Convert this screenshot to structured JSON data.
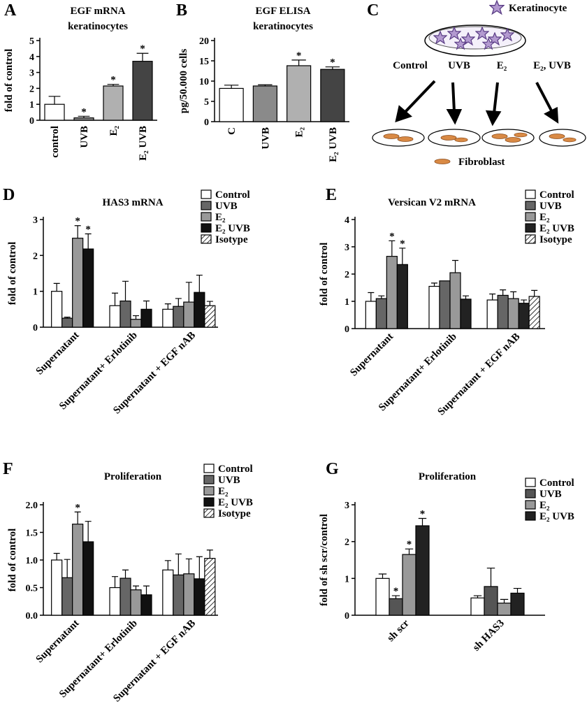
{
  "chart_data": [
    {
      "type": "bar",
      "panel": "A",
      "title": "EGF mRNA",
      "subtitle": "keratinocytes",
      "ylabel": "fold of control",
      "categories": [
        "control",
        "UVB",
        "E₂",
        "E₂ UVB"
      ],
      "values": [
        1.0,
        0.15,
        2.15,
        3.7
      ],
      "errors": [
        0.5,
        0.1,
        0.1,
        0.5
      ],
      "colors": [
        "#ffffff",
        "#8a8a8a",
        "#b0b0b0",
        "#444444"
      ],
      "markers": [
        null,
        "*",
        "*",
        "*"
      ],
      "ylim": [
        0,
        5
      ],
      "yticks": [
        0,
        1,
        2,
        3,
        4,
        5
      ]
    },
    {
      "type": "bar",
      "panel": "B",
      "title": "EGF ELISA",
      "subtitle": "keratinocytes",
      "ylabel": "pg/50.000 cells",
      "categories": [
        "C",
        "UVB",
        "E₂",
        "E₂ UVB"
      ],
      "values": [
        8.2,
        8.8,
        13.8,
        12.9
      ],
      "errors": [
        0.8,
        0.3,
        1.4,
        0.6
      ],
      "colors": [
        "#ffffff",
        "#8a8a8a",
        "#b0b0b0",
        "#444444"
      ],
      "markers": [
        null,
        null,
        "*",
        "*"
      ],
      "ylim": [
        0,
        20
      ],
      "yticks": [
        0,
        5,
        10,
        15,
        20
      ]
    },
    {
      "type": "grouped_bar",
      "panel": "D",
      "title": "HAS3 mRNA",
      "ylabel": "fold of control",
      "categories": [
        "Supernatant",
        "Supernatant+ Erlotinib",
        "Supernatant + EGF nAB"
      ],
      "series": [
        {
          "name": "Control",
          "color": "#ffffff",
          "values": [
            1.0,
            0.6,
            0.5
          ],
          "errors": [
            0.22,
            0.35,
            0.15
          ],
          "markers": [
            null,
            null,
            null
          ]
        },
        {
          "name": "UVB",
          "color": "#666666",
          "values": [
            0.25,
            0.73,
            0.58
          ],
          "errors": [
            0.03,
            0.55,
            0.22
          ],
          "markers": [
            null,
            null,
            null
          ]
        },
        {
          "name": "E₂",
          "color": "#999999",
          "values": [
            2.48,
            0.22,
            0.7
          ],
          "errors": [
            0.35,
            0.1,
            0.55
          ],
          "markers": [
            "*",
            null,
            null
          ]
        },
        {
          "name": "E₂ UVB",
          "color": "#111111",
          "values": [
            2.18,
            0.5,
            0.97
          ],
          "errors": [
            0.42,
            0.23,
            0.48
          ],
          "markers": [
            "*",
            null,
            null
          ]
        },
        {
          "name": "Isotype",
          "color": "#ffffff",
          "pattern": "hatch",
          "values": [
            null,
            null,
            0.6
          ],
          "errors": [
            null,
            null,
            0.12
          ],
          "markers": [
            null,
            null,
            null
          ]
        }
      ],
      "ylim": [
        0,
        3
      ],
      "yticks": [
        0,
        1,
        2,
        3
      ]
    },
    {
      "type": "grouped_bar",
      "panel": "E",
      "title": "Versican V2 mRNA",
      "ylabel": "fold of control",
      "categories": [
        "Supernatant",
        "Supernatant+ Erlotinib",
        "Supernatant + EGF nAB"
      ],
      "series": [
        {
          "name": "Control",
          "color": "#ffffff",
          "values": [
            1.0,
            1.55,
            1.05
          ],
          "errors": [
            0.32,
            0.12,
            0.22
          ],
          "markers": [
            null,
            null,
            null
          ]
        },
        {
          "name": "UVB",
          "color": "#666666",
          "values": [
            1.1,
            1.75,
            1.22
          ],
          "errors": [
            0.1,
            null,
            0.2
          ],
          "markers": [
            null,
            null,
            null
          ]
        },
        {
          "name": "E₂",
          "color": "#999999",
          "values": [
            2.65,
            2.05,
            1.1
          ],
          "errors": [
            0.57,
            0.45,
            0.25
          ],
          "markers": [
            "*",
            null,
            null
          ]
        },
        {
          "name": "E₂ UVB",
          "color": "#222222",
          "values": [
            2.35,
            1.08,
            0.93
          ],
          "errors": [
            0.6,
            0.12,
            0.12
          ],
          "markers": [
            "*",
            null,
            null
          ]
        },
        {
          "name": "Isotype",
          "color": "#ffffff",
          "pattern": "hatch",
          "values": [
            null,
            null,
            1.18
          ],
          "errors": [
            null,
            null,
            0.22
          ],
          "markers": [
            null,
            null,
            null
          ]
        }
      ],
      "ylim": [
        0,
        4
      ],
      "yticks": [
        0,
        1,
        2,
        3,
        4
      ]
    },
    {
      "type": "grouped_bar",
      "panel": "F",
      "title": "Proliferation",
      "ylabel": "fold of control",
      "categories": [
        "Supernatant",
        "Supernatant+ Erlotinib",
        "Supernatant + EGF nAB"
      ],
      "series": [
        {
          "name": "Control",
          "color": "#ffffff",
          "values": [
            1.0,
            0.5,
            0.82
          ],
          "errors": [
            0.12,
            0.2,
            0.17
          ],
          "markers": [
            null,
            null,
            null
          ]
        },
        {
          "name": "UVB",
          "color": "#666666",
          "values": [
            0.68,
            0.67,
            0.73
          ],
          "errors": [
            0.33,
            0.15,
            0.38
          ],
          "markers": [
            null,
            null,
            null
          ]
        },
        {
          "name": "E₂",
          "color": "#999999",
          "values": [
            1.65,
            0.46,
            0.75
          ],
          "errors": [
            0.22,
            0.07,
            0.27
          ],
          "markers": [
            "*",
            null,
            null
          ]
        },
        {
          "name": "E₂ UVB",
          "color": "#111111",
          "values": [
            1.33,
            0.37,
            0.66
          ],
          "errors": [
            0.37,
            0.16,
            0.4
          ],
          "markers": [
            null,
            null,
            null
          ]
        },
        {
          "name": "Isotype",
          "color": "#ffffff",
          "pattern": "hatch",
          "values": [
            null,
            null,
            1.03
          ],
          "errors": [
            null,
            null,
            0.15
          ],
          "markers": [
            null,
            null,
            null
          ]
        }
      ],
      "ylim": [
        0,
        2
      ],
      "yticks": [
        {
          "value": 0,
          "label": "0.0"
        },
        {
          "value": 0.5,
          "label": "0.5"
        },
        {
          "value": 1,
          "label": "1.0"
        },
        {
          "value": 1.5,
          "label": "1.5"
        },
        {
          "value": 2,
          "label": "2.0"
        }
      ]
    },
    {
      "type": "grouped_bar",
      "panel": "G",
      "title": "Proliferation",
      "ylabel": "fold of  sh scr/control",
      "categories": [
        "sh scr",
        "sh HAS3"
      ],
      "series": [
        {
          "name": "Control",
          "color": "#ffffff",
          "values": [
            1.0,
            0.47
          ],
          "errors": [
            0.12,
            0.06
          ],
          "markers": [
            null,
            null
          ]
        },
        {
          "name": "UVB",
          "color": "#555555",
          "values": [
            0.45,
            0.78
          ],
          "errors": [
            0.08,
            0.5
          ],
          "markers": [
            "*",
            null
          ]
        },
        {
          "name": "E₂",
          "color": "#999999",
          "values": [
            1.65,
            0.33
          ],
          "errors": [
            0.15,
            0.1
          ],
          "markers": [
            "*",
            null
          ]
        },
        {
          "name": "E₂ UVB",
          "color": "#222222",
          "values": [
            2.43,
            0.6
          ],
          "errors": [
            0.2,
            0.13
          ],
          "markers": [
            "*",
            null
          ]
        }
      ],
      "ylim": [
        0,
        3
      ],
      "yticks": [
        0,
        1,
        2,
        3
      ]
    }
  ],
  "panel_c": {
    "panel": "C",
    "keratinocyte": "Keratinocyte",
    "treatments": [
      "Control",
      "UVB",
      "E₂",
      "E₂, UVB"
    ],
    "fibroblast": "Fibroblast"
  }
}
